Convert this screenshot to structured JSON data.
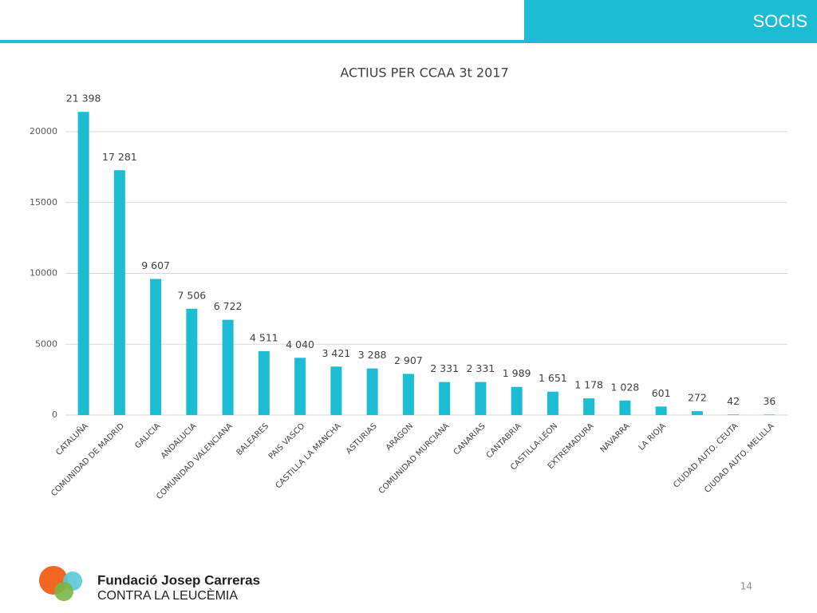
{
  "header": {
    "title": "SOCIS"
  },
  "chart_data": {
    "type": "bar",
    "title": "ACTIUS PER CCAA 3t 2017",
    "categories": [
      "CATALUÑA",
      "COMUNIDAD DE MADRID",
      "GALICIA",
      "ANDALUCIA",
      "COMUNIDAD VALENCIANA",
      "BALEARES",
      "PAIS VASCO",
      "CASTILLA LA MANCHA",
      "ASTURIAS",
      "ARAGON",
      "COMUNIDAD MURCIANA",
      "CANARIAS",
      "CANTABRIA",
      "CASTILLA-LEON",
      "EXTREMADURA",
      "NAVARRA",
      "LA RIOJA",
      "",
      "CIUDAD AUTO. CEUTA",
      "CIUDAD AUTO. MELILLA"
    ],
    "values": [
      21398,
      17281,
      9607,
      7506,
      6722,
      4511,
      4040,
      3421,
      3288,
      2907,
      2331,
      2331,
      1989,
      1651,
      1178,
      1028,
      601,
      272,
      42,
      36
    ],
    "value_labels": [
      "21 398",
      "17 281",
      "9 607",
      "7 506",
      "6 722",
      "4 511",
      "4 040",
      "3 421",
      "3 288",
      "2 907",
      "2 331",
      "2 331",
      "1 989",
      "1 651",
      "1 178",
      "1 028",
      "601",
      "272",
      "42",
      "36"
    ],
    "color": "#1cbdd3",
    "ylim": [
      0,
      20000
    ],
    "yticks": [
      0,
      5000,
      10000,
      15000,
      20000
    ],
    "grid": true
  },
  "footer": {
    "org": "Fundació Josep Carreras",
    "tagline": "CONTRA LA LEUCÈMIA",
    "page": "14"
  }
}
